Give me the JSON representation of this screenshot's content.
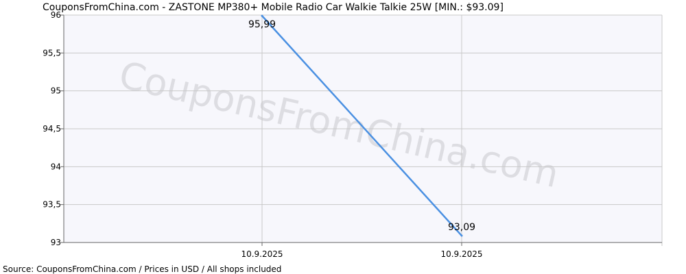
{
  "page": {
    "title": "CouponsFromChina.com - ZASTONE MP380+ Mobile Radio Car Walkie Talkie 25W [MIN.: $93.09]",
    "footer": "Source: CouponsFromChina.com / Prices in USD / All shops included",
    "watermark": "CouponsFromChina.com"
  },
  "colors": {
    "background": "#ffffff",
    "plot_background": "#f7f7fc",
    "grid": "#c8c8c8",
    "axis": "#666666",
    "line": "#4a90e2",
    "watermark": "#c8c8cc"
  },
  "chart_data": {
    "type": "line",
    "title": "CouponsFromChina.com - ZASTONE MP380+ Mobile Radio Car Walkie Talkie 25W [MIN.: $93.09]",
    "xlabel": "",
    "ylabel": "",
    "x_tick_labels": [
      "10.9.2025",
      "10.9.2025"
    ],
    "y_ticks": [
      93,
      93.5,
      94,
      94.5,
      95,
      95.5,
      96
    ],
    "y_tick_labels": [
      "93",
      "93,5",
      "94",
      "94,5",
      "95",
      "95,5",
      "96"
    ],
    "ylim": [
      93,
      96
    ],
    "grid": true,
    "series": [
      {
        "points": [
          {
            "x_index": 0,
            "y": 95.99,
            "label": "95,99"
          },
          {
            "x_index": 1,
            "y": 93.09,
            "label": "93,09"
          }
        ]
      }
    ]
  }
}
